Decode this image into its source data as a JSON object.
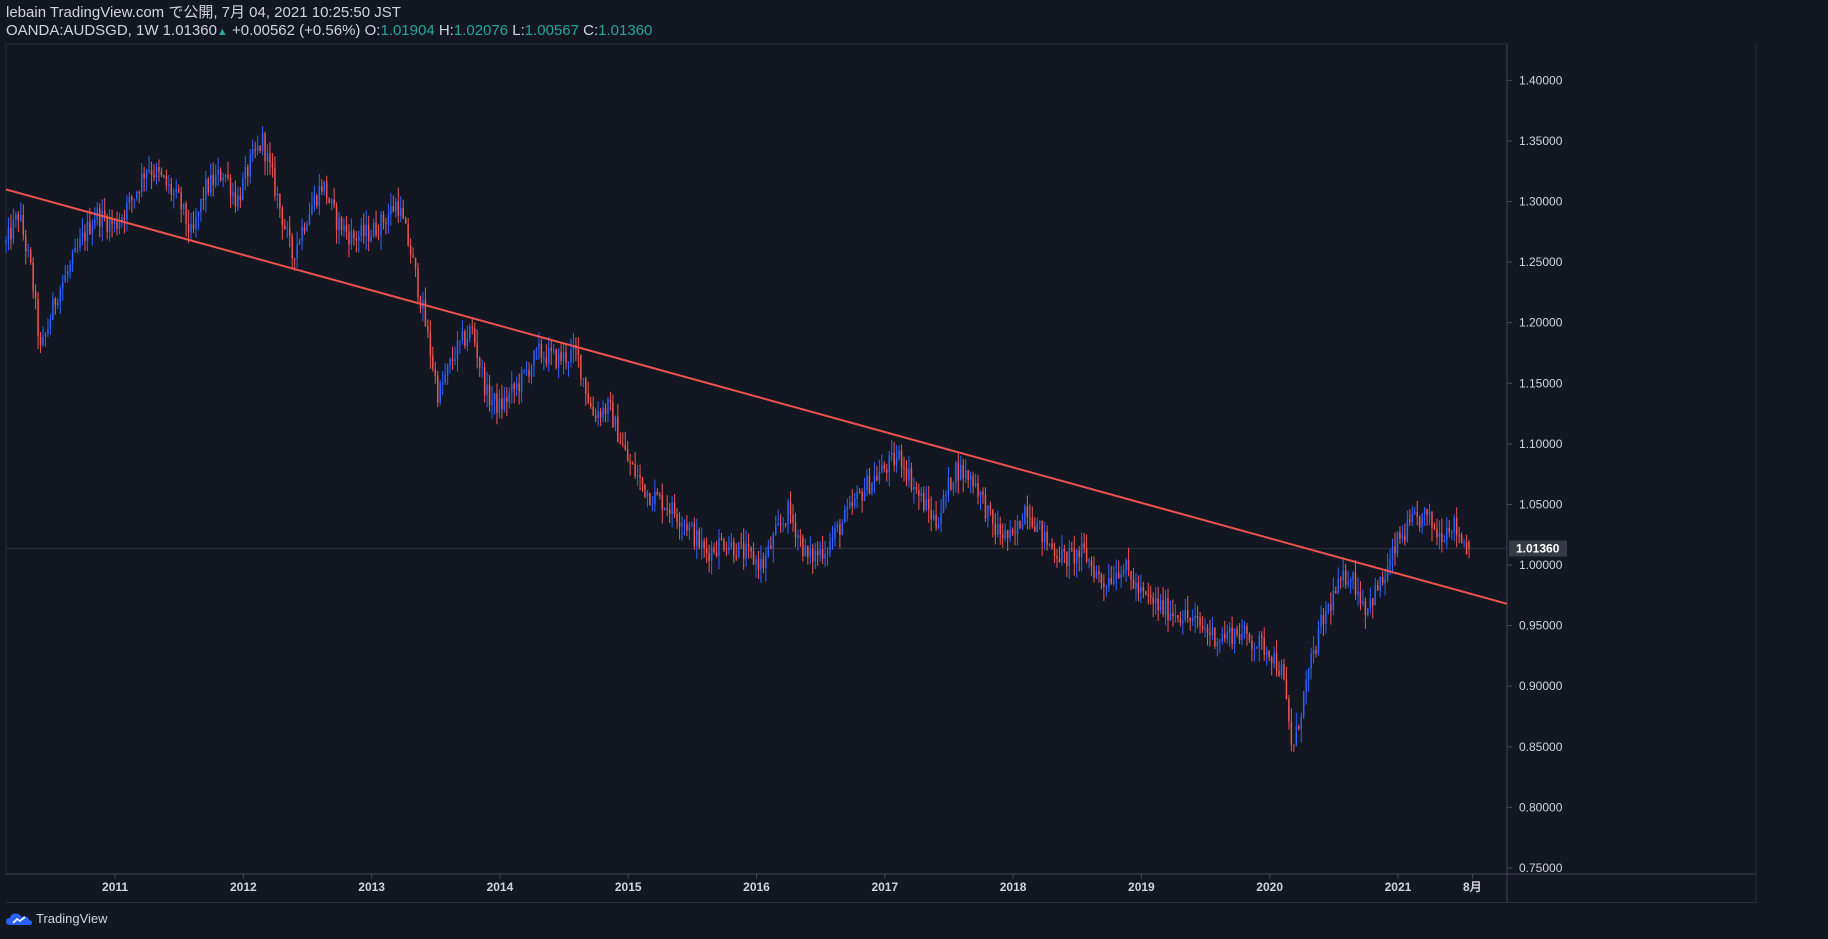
{
  "header": {
    "line1": "lebain TradingView.com で公開, 7月 04, 2021 10:25:50 JST",
    "symbol_prefix": "OANDA:AUDSGD, 1W 1.01360",
    "arrow": "▲",
    "change": "+0.00562 (+0.56%)",
    "o_label": "O:",
    "o_value": "1.01904",
    "h_label": "H:",
    "h_value": "1.02076",
    "l_label": "L:",
    "l_value": "1.00567",
    "c_label": "C:",
    "c_value": "1.01360"
  },
  "footer": {
    "logo_text": "TradingView"
  },
  "colors": {
    "background": "#131722",
    "up": "#2962ff",
    "down": "#ef5350",
    "trendline": "#ef5350",
    "axis_text": "#d1d4dc",
    "price_label_bg": "#363a45"
  },
  "chart_data": {
    "type": "candlestick",
    "symbol": "OANDA:AUDSGD",
    "interval": "1W",
    "ylim": [
      0.745,
      1.43
    ],
    "y_ticks": [
      0.75,
      0.8,
      0.85,
      0.9,
      0.95,
      1.0,
      1.05,
      1.1,
      1.15,
      1.2,
      1.25,
      1.3,
      1.35,
      1.4
    ],
    "y_tick_labels": [
      "0.75000",
      "0.80000",
      "0.85000",
      "0.90000",
      "0.95000",
      "1.00000",
      "1.05000",
      "1.10000",
      "1.15000",
      "1.20000",
      "1.25000",
      "1.30000",
      "1.35000",
      "1.40000"
    ],
    "x_range": [
      2010.15,
      2021.85
    ],
    "x_ticks": [
      {
        "t": 2011.0,
        "label": "2011"
      },
      {
        "t": 2012.0,
        "label": "2012"
      },
      {
        "t": 2013.0,
        "label": "2013"
      },
      {
        "t": 2014.0,
        "label": "2014"
      },
      {
        "t": 2015.0,
        "label": "2015"
      },
      {
        "t": 2016.0,
        "label": "2016"
      },
      {
        "t": 2017.0,
        "label": "2017"
      },
      {
        "t": 2018.0,
        "label": "2018"
      },
      {
        "t": 2019.0,
        "label": "2019"
      },
      {
        "t": 2020.0,
        "label": "2020"
      },
      {
        "t": 2021.0,
        "label": "2021"
      },
      {
        "t": 2021.58,
        "label": "8月"
      }
    ],
    "last_price": 1.0136,
    "last_price_label": "1.01360",
    "trendline": {
      "x1": 2010.15,
      "y1": 1.31,
      "x2": 2021.85,
      "y2": 0.968
    },
    "close_path": [
      [
        2010.15,
        1.265
      ],
      [
        2010.25,
        1.29
      ],
      [
        2010.35,
        1.24
      ],
      [
        2010.42,
        1.175
      ],
      [
        2010.55,
        1.225
      ],
      [
        2010.65,
        1.245
      ],
      [
        2010.75,
        1.27
      ],
      [
        2010.85,
        1.29
      ],
      [
        2011.0,
        1.28
      ],
      [
        2011.15,
        1.305
      ],
      [
        2011.25,
        1.33
      ],
      [
        2011.35,
        1.32
      ],
      [
        2011.5,
        1.3
      ],
      [
        2011.6,
        1.27
      ],
      [
        2011.7,
        1.31
      ],
      [
        2011.85,
        1.325
      ],
      [
        2011.95,
        1.3
      ],
      [
        2012.05,
        1.33
      ],
      [
        2012.15,
        1.35
      ],
      [
        2012.25,
        1.31
      ],
      [
        2012.38,
        1.255
      ],
      [
        2012.5,
        1.29
      ],
      [
        2012.62,
        1.315
      ],
      [
        2012.72,
        1.285
      ],
      [
        2012.85,
        1.27
      ],
      [
        2013.0,
        1.275
      ],
      [
        2013.1,
        1.285
      ],
      [
        2013.2,
        1.3
      ],
      [
        2013.3,
        1.26
      ],
      [
        2013.4,
        1.21
      ],
      [
        2013.52,
        1.14
      ],
      [
        2013.65,
        1.175
      ],
      [
        2013.78,
        1.195
      ],
      [
        2013.9,
        1.14
      ],
      [
        2014.0,
        1.13
      ],
      [
        2014.15,
        1.15
      ],
      [
        2014.3,
        1.175
      ],
      [
        2014.45,
        1.17
      ],
      [
        2014.6,
        1.175
      ],
      [
        2014.72,
        1.125
      ],
      [
        2014.85,
        1.13
      ],
      [
        2015.0,
        1.085
      ],
      [
        2015.15,
        1.06
      ],
      [
        2015.3,
        1.05
      ],
      [
        2015.45,
        1.035
      ],
      [
        2015.6,
        1.01
      ],
      [
        2015.75,
        1.02
      ],
      [
        2015.9,
        1.01
      ],
      [
        2016.05,
        1.0
      ],
      [
        2016.15,
        1.025
      ],
      [
        2016.25,
        1.045
      ],
      [
        2016.4,
        1.005
      ],
      [
        2016.55,
        1.015
      ],
      [
        2016.7,
        1.04
      ],
      [
        2016.85,
        1.065
      ],
      [
        2017.0,
        1.08
      ],
      [
        2017.12,
        1.09
      ],
      [
        2017.25,
        1.06
      ],
      [
        2017.4,
        1.035
      ],
      [
        2017.55,
        1.08
      ],
      [
        2017.7,
        1.07
      ],
      [
        2017.85,
        1.03
      ],
      [
        2018.0,
        1.02
      ],
      [
        2018.1,
        1.05
      ],
      [
        2018.25,
        1.02
      ],
      [
        2018.4,
        1.005
      ],
      [
        2018.55,
        1.01
      ],
      [
        2018.7,
        0.985
      ],
      [
        2018.85,
        1.0
      ],
      [
        2019.0,
        0.975
      ],
      [
        2019.15,
        0.965
      ],
      [
        2019.3,
        0.96
      ],
      [
        2019.45,
        0.95
      ],
      [
        2019.6,
        0.94
      ],
      [
        2019.75,
        0.945
      ],
      [
        2019.9,
        0.935
      ],
      [
        2020.0,
        0.93
      ],
      [
        2020.1,
        0.91
      ],
      [
        2020.18,
        0.845
      ],
      [
        2020.28,
        0.9
      ],
      [
        2020.4,
        0.95
      ],
      [
        2020.5,
        0.975
      ],
      [
        2020.62,
        0.995
      ],
      [
        2020.75,
        0.965
      ],
      [
        2020.9,
        0.99
      ],
      [
        2021.0,
        1.02
      ],
      [
        2021.12,
        1.035
      ],
      [
        2021.22,
        1.04
      ],
      [
        2021.32,
        1.025
      ],
      [
        2021.42,
        1.035
      ],
      [
        2021.52,
        1.018
      ],
      [
        2021.56,
        1.0136
      ]
    ]
  }
}
